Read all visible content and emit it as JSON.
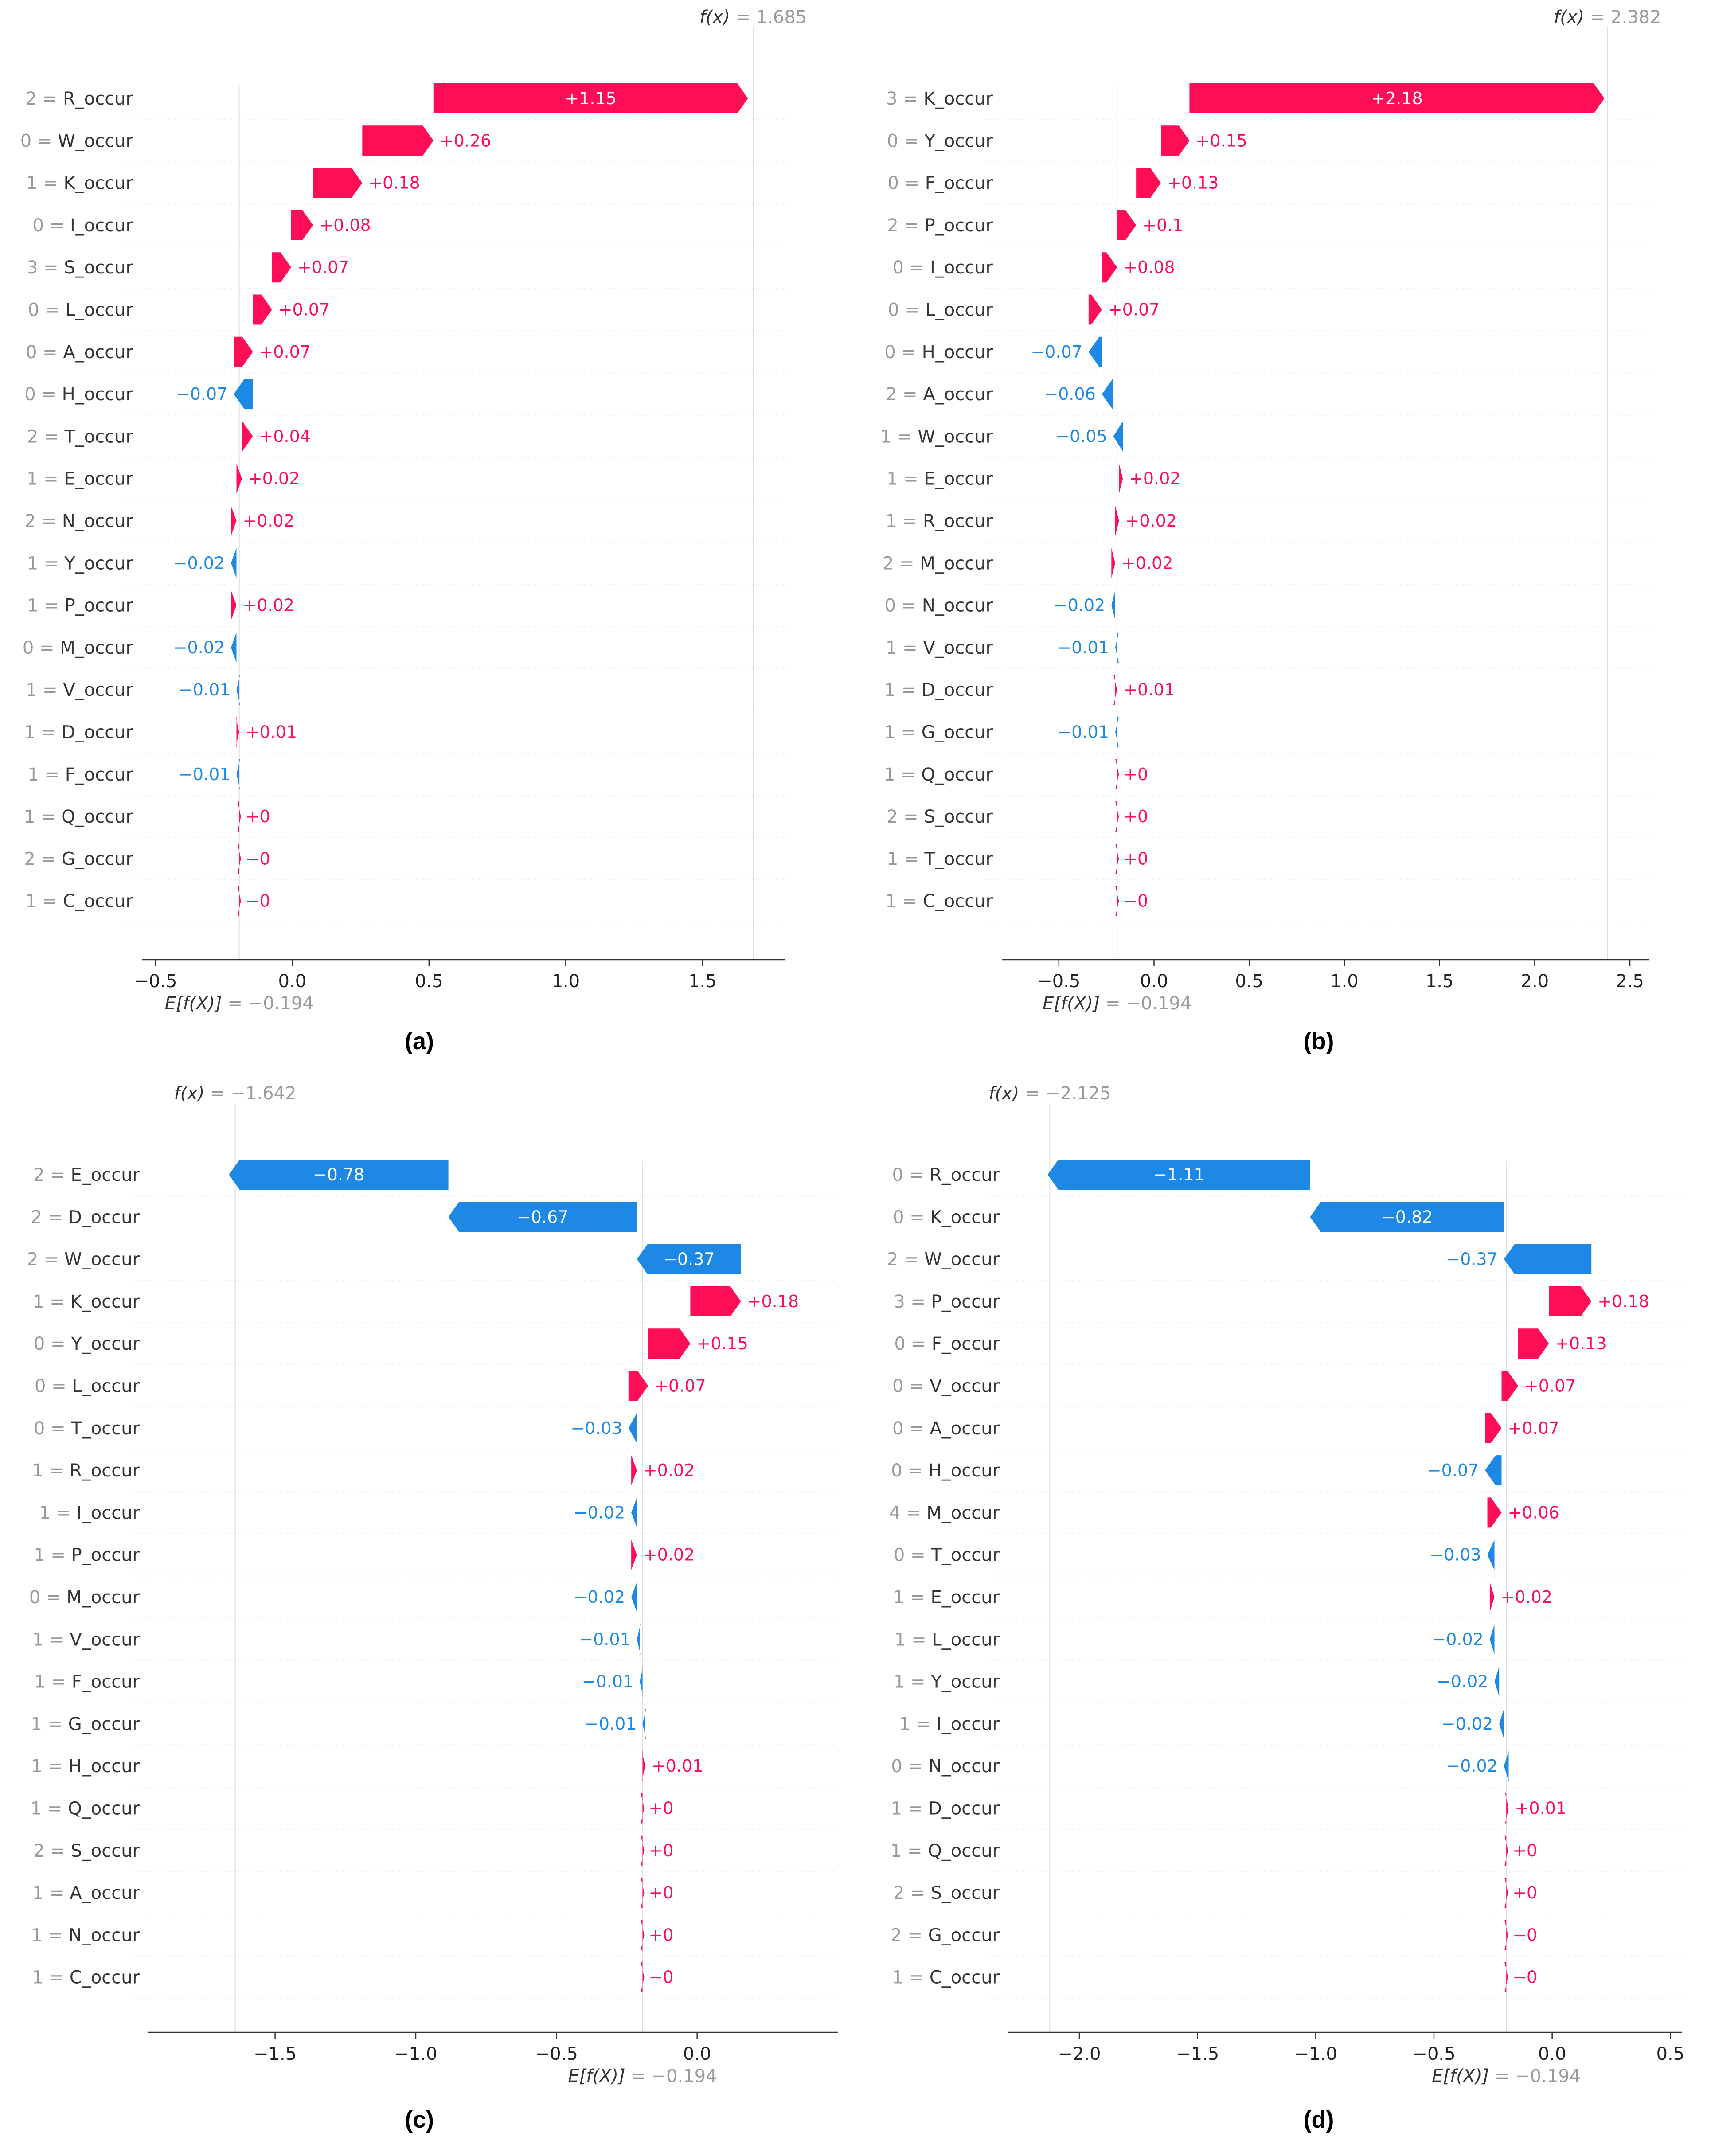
{
  "labels": [
    "(a)",
    "(b)",
    "(c)",
    "(d)"
  ],
  "chart_data": [
    {
      "type": "waterfall",
      "fx": "1.685",
      "efx": "−0.194",
      "fx_value": 1.685,
      "efx_value": -0.194,
      "xlim": [
        -0.55,
        1.8
      ],
      "xticks": [
        -0.5,
        0.0,
        0.5,
        1.0,
        1.5
      ],
      "xtick_labels": [
        "−0.5",
        "0.0",
        "0.5",
        "1.0",
        "1.5"
      ],
      "features": [
        {
          "value": "2",
          "name": "R_occur",
          "shap": 1.15,
          "label": "+1.15"
        },
        {
          "value": "0",
          "name": "W_occur",
          "shap": 0.26,
          "label": "+0.26"
        },
        {
          "value": "1",
          "name": "K_occur",
          "shap": 0.18,
          "label": "+0.18"
        },
        {
          "value": "0",
          "name": "I_occur",
          "shap": 0.08,
          "label": "+0.08"
        },
        {
          "value": "3",
          "name": "S_occur",
          "shap": 0.07,
          "label": "+0.07"
        },
        {
          "value": "0",
          "name": "L_occur",
          "shap": 0.07,
          "label": "+0.07"
        },
        {
          "value": "0",
          "name": "A_occur",
          "shap": 0.07,
          "label": "+0.07"
        },
        {
          "value": "0",
          "name": "H_occur",
          "shap": -0.07,
          "label": "−0.07"
        },
        {
          "value": "2",
          "name": "T_occur",
          "shap": 0.04,
          "label": "+0.04"
        },
        {
          "value": "1",
          "name": "E_occur",
          "shap": 0.02,
          "label": "+0.02"
        },
        {
          "value": "2",
          "name": "N_occur",
          "shap": 0.02,
          "label": "+0.02"
        },
        {
          "value": "1",
          "name": "Y_occur",
          "shap": -0.02,
          "label": "−0.02"
        },
        {
          "value": "1",
          "name": "P_occur",
          "shap": 0.02,
          "label": "+0.02"
        },
        {
          "value": "0",
          "name": "M_occur",
          "shap": -0.02,
          "label": "−0.02"
        },
        {
          "value": "1",
          "name": "V_occur",
          "shap": -0.01,
          "label": "−0.01"
        },
        {
          "value": "1",
          "name": "D_occur",
          "shap": 0.01,
          "label": "+0.01"
        },
        {
          "value": "1",
          "name": "F_occur",
          "shap": -0.01,
          "label": "−0.01"
        },
        {
          "value": "1",
          "name": "Q_occur",
          "shap": 0.0,
          "label": "+0"
        },
        {
          "value": "2",
          "name": "G_occur",
          "shap": -0.0,
          "label": "−0"
        },
        {
          "value": "1",
          "name": "C_occur",
          "shap": -0.0,
          "label": "−0"
        }
      ]
    },
    {
      "type": "waterfall",
      "fx": "2.382",
      "efx": "−0.194",
      "fx_value": 2.382,
      "efx_value": -0.194,
      "xlim": [
        -0.8,
        2.6
      ],
      "xticks": [
        -0.5,
        0.0,
        0.5,
        1.0,
        1.5,
        2.0,
        2.5
      ],
      "xtick_labels": [
        "−0.5",
        "0.0",
        "0.5",
        "1.0",
        "1.5",
        "2.0",
        "2.5"
      ],
      "features": [
        {
          "value": "3",
          "name": "K_occur",
          "shap": 2.18,
          "label": "+2.18"
        },
        {
          "value": "0",
          "name": "Y_occur",
          "shap": 0.15,
          "label": "+0.15"
        },
        {
          "value": "0",
          "name": "F_occur",
          "shap": 0.13,
          "label": "+0.13"
        },
        {
          "value": "2",
          "name": "P_occur",
          "shap": 0.1,
          "label": "+0.1"
        },
        {
          "value": "0",
          "name": "I_occur",
          "shap": 0.08,
          "label": "+0.08"
        },
        {
          "value": "0",
          "name": "L_occur",
          "shap": 0.07,
          "label": "+0.07"
        },
        {
          "value": "0",
          "name": "H_occur",
          "shap": -0.07,
          "label": "−0.07"
        },
        {
          "value": "2",
          "name": "A_occur",
          "shap": -0.06,
          "label": "−0.06"
        },
        {
          "value": "1",
          "name": "W_occur",
          "shap": -0.05,
          "label": "−0.05"
        },
        {
          "value": "1",
          "name": "E_occur",
          "shap": 0.02,
          "label": "+0.02"
        },
        {
          "value": "1",
          "name": "R_occur",
          "shap": 0.02,
          "label": "+0.02"
        },
        {
          "value": "2",
          "name": "M_occur",
          "shap": 0.02,
          "label": "+0.02"
        },
        {
          "value": "0",
          "name": "N_occur",
          "shap": -0.02,
          "label": "−0.02"
        },
        {
          "value": "1",
          "name": "V_occur",
          "shap": -0.01,
          "label": "−0.01"
        },
        {
          "value": "1",
          "name": "D_occur",
          "shap": 0.01,
          "label": "+0.01"
        },
        {
          "value": "1",
          "name": "G_occur",
          "shap": -0.01,
          "label": "−0.01"
        },
        {
          "value": "1",
          "name": "Q_occur",
          "shap": 0.0,
          "label": "+0"
        },
        {
          "value": "2",
          "name": "S_occur",
          "shap": 0.0,
          "label": "+0"
        },
        {
          "value": "1",
          "name": "T_occur",
          "shap": 0.0,
          "label": "+0"
        },
        {
          "value": "1",
          "name": "C_occur",
          "shap": -0.0,
          "label": "−0"
        }
      ]
    },
    {
      "type": "waterfall",
      "fx": "−1.642",
      "efx": "−0.194",
      "fx_value": -1.642,
      "efx_value": -0.194,
      "xlim": [
        -1.95,
        0.5
      ],
      "xticks": [
        -1.5,
        -1.0,
        -0.5,
        0.0
      ],
      "xtick_labels": [
        "−1.5",
        "−1.0",
        "−0.5",
        "0.0"
      ],
      "features": [
        {
          "value": "2",
          "name": "E_occur",
          "shap": -0.78,
          "label": "−0.78"
        },
        {
          "value": "2",
          "name": "D_occur",
          "shap": -0.67,
          "label": "−0.67"
        },
        {
          "value": "2",
          "name": "W_occur",
          "shap": -0.37,
          "label": "−0.37"
        },
        {
          "value": "1",
          "name": "K_occur",
          "shap": 0.18,
          "label": "+0.18"
        },
        {
          "value": "0",
          "name": "Y_occur",
          "shap": 0.15,
          "label": "+0.15"
        },
        {
          "value": "0",
          "name": "L_occur",
          "shap": 0.07,
          "label": "+0.07"
        },
        {
          "value": "0",
          "name": "T_occur",
          "shap": -0.03,
          "label": "−0.03"
        },
        {
          "value": "1",
          "name": "R_occur",
          "shap": 0.02,
          "label": "+0.02"
        },
        {
          "value": "1",
          "name": "I_occur",
          "shap": -0.02,
          "label": "−0.02"
        },
        {
          "value": "1",
          "name": "P_occur",
          "shap": 0.02,
          "label": "+0.02"
        },
        {
          "value": "0",
          "name": "M_occur",
          "shap": -0.02,
          "label": "−0.02"
        },
        {
          "value": "1",
          "name": "V_occur",
          "shap": -0.01,
          "label": "−0.01"
        },
        {
          "value": "1",
          "name": "F_occur",
          "shap": -0.01,
          "label": "−0.01"
        },
        {
          "value": "1",
          "name": "G_occur",
          "shap": -0.01,
          "label": "−0.01"
        },
        {
          "value": "1",
          "name": "H_occur",
          "shap": 0.01,
          "label": "+0.01"
        },
        {
          "value": "1",
          "name": "Q_occur",
          "shap": 0.0,
          "label": "+0"
        },
        {
          "value": "2",
          "name": "S_occur",
          "shap": 0.0,
          "label": "+0"
        },
        {
          "value": "1",
          "name": "A_occur",
          "shap": 0.0,
          "label": "+0"
        },
        {
          "value": "1",
          "name": "N_occur",
          "shap": 0.0,
          "label": "+0"
        },
        {
          "value": "1",
          "name": "C_occur",
          "shap": -0.0,
          "label": "−0"
        }
      ]
    },
    {
      "type": "waterfall",
      "fx": "−2.125",
      "efx": "−0.194",
      "fx_value": -2.125,
      "efx_value": -0.194,
      "xlim": [
        -2.3,
        0.55
      ],
      "xticks": [
        -2.0,
        -1.5,
        -1.0,
        -0.5,
        0.0,
        0.5
      ],
      "xtick_labels": [
        "−2.0",
        "−1.5",
        "−1.0",
        "−0.5",
        "0.0",
        "0.5"
      ],
      "features": [
        {
          "value": "0",
          "name": "R_occur",
          "shap": -1.11,
          "label": "−1.11"
        },
        {
          "value": "0",
          "name": "K_occur",
          "shap": -0.82,
          "label": "−0.82"
        },
        {
          "value": "2",
          "name": "W_occur",
          "shap": -0.37,
          "label": "−0.37"
        },
        {
          "value": "3",
          "name": "P_occur",
          "shap": 0.18,
          "label": "+0.18"
        },
        {
          "value": "0",
          "name": "F_occur",
          "shap": 0.13,
          "label": "+0.13"
        },
        {
          "value": "0",
          "name": "V_occur",
          "shap": 0.07,
          "label": "+0.07"
        },
        {
          "value": "0",
          "name": "A_occur",
          "shap": 0.07,
          "label": "+0.07"
        },
        {
          "value": "0",
          "name": "H_occur",
          "shap": -0.07,
          "label": "−0.07"
        },
        {
          "value": "4",
          "name": "M_occur",
          "shap": 0.06,
          "label": "+0.06"
        },
        {
          "value": "0",
          "name": "T_occur",
          "shap": -0.03,
          "label": "−0.03"
        },
        {
          "value": "1",
          "name": "E_occur",
          "shap": 0.02,
          "label": "+0.02"
        },
        {
          "value": "1",
          "name": "L_occur",
          "shap": -0.02,
          "label": "−0.02"
        },
        {
          "value": "1",
          "name": "Y_occur",
          "shap": -0.02,
          "label": "−0.02"
        },
        {
          "value": "1",
          "name": "I_occur",
          "shap": -0.02,
          "label": "−0.02"
        },
        {
          "value": "0",
          "name": "N_occur",
          "shap": -0.02,
          "label": "−0.02"
        },
        {
          "value": "1",
          "name": "D_occur",
          "shap": 0.01,
          "label": "+0.01"
        },
        {
          "value": "1",
          "name": "Q_occur",
          "shap": 0.0,
          "label": "+0"
        },
        {
          "value": "2",
          "name": "S_occur",
          "shap": 0.0,
          "label": "+0"
        },
        {
          "value": "2",
          "name": "G_occur",
          "shap": -0.0,
          "label": "−0"
        },
        {
          "value": "1",
          "name": "C_occur",
          "shap": -0.0,
          "label": "−0"
        }
      ]
    }
  ],
  "colors": {
    "positive": "#ff0d57",
    "negative": "#1e88e5",
    "text": "#333333",
    "muted": "#999999",
    "guide": "#dddddd"
  }
}
